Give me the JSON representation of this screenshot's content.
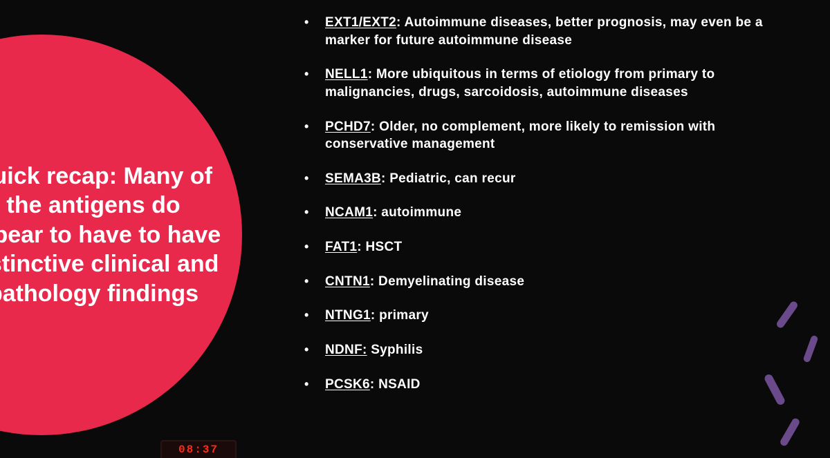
{
  "colors": {
    "background": "#0a0a0a",
    "circle": "#e8294c",
    "text": "#ffffff",
    "dash": "#6a4a8a",
    "timer_digit": "#ff2a1a"
  },
  "sidebar": {
    "title": "Quick recap: Many of the antigens do appear to have to have distinctive clinical and pathology findings"
  },
  "items": [
    {
      "term": "EXT1/EXT2",
      "desc": ": Autoimmune diseases, better prognosis, may even be a marker for future autoimmune disease"
    },
    {
      "term": "NELL1",
      "desc": ": More ubiquitous in terms of etiology from primary to malignancies, drugs, sarcoidosis, autoimmune diseases"
    },
    {
      "term": "PCHD7",
      "desc": ": Older, no complement, more likely to remission with conservative management"
    },
    {
      "term": "SEMA3B",
      "desc": ": Pediatric, can recur"
    },
    {
      "term": "NCAM1",
      "desc": ": autoimmune"
    },
    {
      "term": "FAT1",
      "desc": ": HSCT"
    },
    {
      "term": "CNTN1",
      "desc": ": Demyelinating disease"
    },
    {
      "term": "NTNG1",
      "desc": ": primary"
    },
    {
      "term": "NDNF:",
      "desc": " Syphilis"
    },
    {
      "term": "PCSK6",
      "desc": ": NSAID"
    }
  ],
  "timer": {
    "value": "08:37"
  }
}
